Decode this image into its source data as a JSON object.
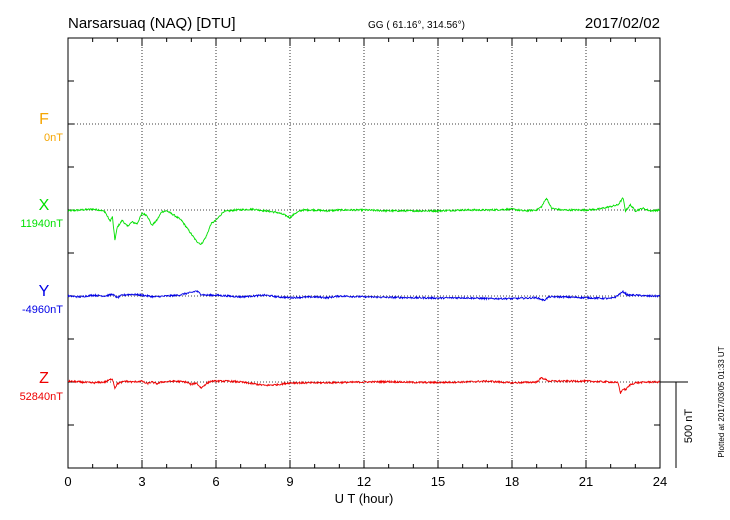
{
  "header": {
    "station": "Narsarsuaq (NAQ)  [DTU]",
    "coords": "GG ( 61.16°, 314.56°)",
    "date": "2017/02/02"
  },
  "side_note": "Plotted at 2017/03/05 01:33 UT",
  "scale_label": "500 nT",
  "chart_data": {
    "type": "line",
    "xlabel": "U T (hour)",
    "xlim": [
      0,
      24
    ],
    "x_ticks": [
      "0",
      "3",
      "6",
      "9",
      "12",
      "15",
      "18",
      "21",
      "24"
    ],
    "grid": true,
    "colors": {
      "F": "#f5a500",
      "X": "#00e000",
      "Y": "#0000e6",
      "Z": "#ee0000"
    },
    "series": [
      {
        "name": "F",
        "baseline_label": "0nT",
        "points": []
      },
      {
        "name": "X",
        "baseline_label": "11940nT",
        "points": [
          [
            0,
            -5
          ],
          [
            0.5,
            0
          ],
          [
            1.0,
            5
          ],
          [
            1.3,
            0
          ],
          [
            1.5,
            -10
          ],
          [
            1.7,
            -65
          ],
          [
            1.8,
            -40
          ],
          [
            1.9,
            -175
          ],
          [
            2.0,
            -100
          ],
          [
            2.2,
            -60
          ],
          [
            2.4,
            -95
          ],
          [
            2.6,
            -70
          ],
          [
            2.8,
            -80
          ],
          [
            3.0,
            -20
          ],
          [
            3.2,
            -30
          ],
          [
            3.4,
            -90
          ],
          [
            3.6,
            -60
          ],
          [
            3.8,
            -10
          ],
          [
            4.0,
            -5
          ],
          [
            4.3,
            -30
          ],
          [
            4.6,
            -60
          ],
          [
            4.8,
            -100
          ],
          [
            5.0,
            -140
          ],
          [
            5.2,
            -180
          ],
          [
            5.4,
            -200
          ],
          [
            5.6,
            -155
          ],
          [
            5.8,
            -80
          ],
          [
            6.0,
            -60
          ],
          [
            6.3,
            -10
          ],
          [
            6.8,
            0
          ],
          [
            7.5,
            5
          ],
          [
            8.0,
            -5
          ],
          [
            8.5,
            -15
          ],
          [
            8.8,
            -30
          ],
          [
            9.0,
            -45
          ],
          [
            9.2,
            -20
          ],
          [
            9.5,
            0
          ],
          [
            10.0,
            0
          ],
          [
            10.5,
            -5
          ],
          [
            11.0,
            0
          ],
          [
            12.0,
            0
          ],
          [
            13.0,
            -5
          ],
          [
            14.0,
            -5
          ],
          [
            15.0,
            -5
          ],
          [
            16.0,
            0
          ],
          [
            17.0,
            0
          ],
          [
            17.5,
            2
          ],
          [
            18.0,
            5
          ],
          [
            18.5,
            -5
          ],
          [
            19.0,
            0
          ],
          [
            19.2,
            20
          ],
          [
            19.4,
            70
          ],
          [
            19.6,
            10
          ],
          [
            20.0,
            0
          ],
          [
            21.0,
            0
          ],
          [
            21.5,
            5
          ],
          [
            22.0,
            20
          ],
          [
            22.3,
            30
          ],
          [
            22.5,
            70
          ],
          [
            22.6,
            -5
          ],
          [
            22.8,
            30
          ],
          [
            23.0,
            -5
          ],
          [
            23.3,
            10
          ],
          [
            23.6,
            -5
          ],
          [
            24.0,
            0
          ]
        ]
      },
      {
        "name": "Y",
        "baseline_label": "-4960nT",
        "points": [
          [
            0,
            0
          ],
          [
            0.5,
            -5
          ],
          [
            1.0,
            5
          ],
          [
            1.5,
            0
          ],
          [
            1.8,
            10
          ],
          [
            2.0,
            -10
          ],
          [
            2.2,
            5
          ],
          [
            2.6,
            10
          ],
          [
            3.0,
            5
          ],
          [
            3.5,
            -5
          ],
          [
            4.0,
            0
          ],
          [
            4.5,
            5
          ],
          [
            4.8,
            15
          ],
          [
            5.0,
            20
          ],
          [
            5.2,
            30
          ],
          [
            5.4,
            10
          ],
          [
            5.6,
            5
          ],
          [
            6.0,
            5
          ],
          [
            7.0,
            -5
          ],
          [
            7.5,
            0
          ],
          [
            8.0,
            5
          ],
          [
            8.5,
            -5
          ],
          [
            9.0,
            -10
          ],
          [
            10.0,
            -5
          ],
          [
            10.5,
            -10
          ],
          [
            11.0,
            0
          ],
          [
            12.0,
            -5
          ],
          [
            13.0,
            -8
          ],
          [
            14.0,
            -10
          ],
          [
            15.0,
            -12
          ],
          [
            16.0,
            -10
          ],
          [
            17.0,
            -15
          ],
          [
            18.0,
            -15
          ],
          [
            19.0,
            -10
          ],
          [
            19.3,
            -25
          ],
          [
            19.5,
            -5
          ],
          [
            20.0,
            -5
          ],
          [
            21.0,
            -10
          ],
          [
            22.0,
            -15
          ],
          [
            22.2,
            -5
          ],
          [
            22.5,
            25
          ],
          [
            22.7,
            5
          ],
          [
            23.0,
            5
          ],
          [
            23.5,
            0
          ],
          [
            24.0,
            0
          ]
        ]
      },
      {
        "name": "Z",
        "baseline_label": "52840nT",
        "points": [
          [
            0,
            5
          ],
          [
            0.5,
            0
          ],
          [
            1.0,
            -5
          ],
          [
            1.5,
            0
          ],
          [
            1.8,
            20
          ],
          [
            1.9,
            -35
          ],
          [
            2.0,
            -10
          ],
          [
            2.3,
            5
          ],
          [
            2.6,
            0
          ],
          [
            3.0,
            5
          ],
          [
            3.2,
            -10
          ],
          [
            3.4,
            0
          ],
          [
            3.6,
            -10
          ],
          [
            3.8,
            0
          ],
          [
            4.3,
            5
          ],
          [
            4.8,
            0
          ],
          [
            5.0,
            -15
          ],
          [
            5.2,
            -5
          ],
          [
            5.4,
            -35
          ],
          [
            5.6,
            -10
          ],
          [
            5.8,
            5
          ],
          [
            6.5,
            5
          ],
          [
            7.0,
            0
          ],
          [
            7.5,
            -10
          ],
          [
            8.0,
            -20
          ],
          [
            8.5,
            -15
          ],
          [
            9.0,
            -5
          ],
          [
            9.5,
            -5
          ],
          [
            10.0,
            -5
          ],
          [
            11.0,
            -3
          ],
          [
            12.0,
            0
          ],
          [
            13.0,
            2
          ],
          [
            14.0,
            -2
          ],
          [
            15.0,
            -3
          ],
          [
            16.0,
            0
          ],
          [
            17.0,
            5
          ],
          [
            18.0,
            -5
          ],
          [
            19.0,
            0
          ],
          [
            19.2,
            25
          ],
          [
            19.5,
            5
          ],
          [
            20.0,
            5
          ],
          [
            21.0,
            5
          ],
          [
            22.0,
            0
          ],
          [
            22.3,
            -5
          ],
          [
            22.4,
            -65
          ],
          [
            22.5,
            -40
          ],
          [
            22.6,
            -45
          ],
          [
            22.8,
            -15
          ],
          [
            23.0,
            -5
          ],
          [
            23.5,
            0
          ],
          [
            24.0,
            0
          ]
        ]
      }
    ]
  }
}
